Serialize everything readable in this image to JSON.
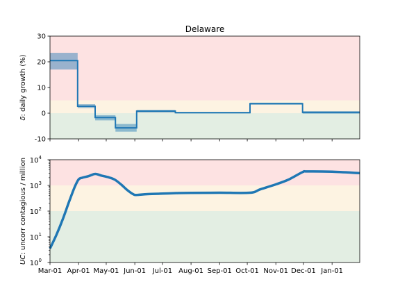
{
  "chart_data": [
    {
      "type": "line",
      "title": "Delaware",
      "ylabel_symbol": "δ",
      "ylabel_rest": ": daily growth (%)",
      "ylim": [
        -10,
        30
      ],
      "yticks": [
        -10,
        0,
        10,
        20,
        30
      ],
      "xlim": [
        "2020-03-01",
        "2021-01-31"
      ],
      "bands": [
        {
          "from": -10,
          "to": 0,
          "color": "#e3eee3"
        },
        {
          "from": 0,
          "to": 5,
          "color": "#fdf3e2"
        },
        {
          "from": 5,
          "to": 30,
          "color": "#fde2e2"
        }
      ],
      "series": [
        {
          "type": "step",
          "color": "#1f77b4",
          "segments": [
            {
              "start": "2020-03-01",
              "end": "2020-03-31",
              "value": 20.5,
              "lo": 17.0,
              "hi": 23.5
            },
            {
              "start": "2020-03-31",
              "end": "2020-04-19",
              "value": 2.7,
              "lo": 2.0,
              "hi": 3.5
            },
            {
              "start": "2020-04-19",
              "end": "2020-05-11",
              "value": -1.7,
              "lo": -2.8,
              "hi": -0.8
            },
            {
              "start": "2020-05-11",
              "end": "2020-06-03",
              "value": -5.7,
              "lo": -7.2,
              "hi": -4.2
            },
            {
              "start": "2020-06-03",
              "end": "2020-07-15",
              "value": 0.8,
              "lo": 0.2,
              "hi": 1.3
            },
            {
              "start": "2020-07-15",
              "end": "2020-10-04",
              "value": 0.2,
              "lo": -0.1,
              "hi": 0.5
            },
            {
              "start": "2020-10-04",
              "end": "2020-11-30",
              "value": 3.7,
              "lo": 3.3,
              "hi": 4.1
            },
            {
              "start": "2020-11-30",
              "end": "2021-01-31",
              "value": 0.3,
              "lo": -0.2,
              "hi": 0.8
            }
          ]
        }
      ]
    },
    {
      "type": "line",
      "ylabel_symbol": "UC",
      "ylabel_rest": ": uncorr contagious / million",
      "yscale": "log",
      "ylim": [
        1,
        10000
      ],
      "yticks": [
        {
          "value": 1,
          "base": "10",
          "exp": "0"
        },
        {
          "value": 10,
          "base": "10",
          "exp": "1"
        },
        {
          "value": 100,
          "base": "10",
          "exp": "2"
        },
        {
          "value": 1000,
          "base": "10",
          "exp": "3"
        },
        {
          "value": 10000,
          "base": "10",
          "exp": "4"
        }
      ],
      "xlim": [
        "2020-03-01",
        "2021-01-31"
      ],
      "xticks": [
        {
          "date": "2020-03-01",
          "label": "Mar-01"
        },
        {
          "date": "2020-04-01",
          "label": "Apr-01"
        },
        {
          "date": "2020-05-01",
          "label": "May-01"
        },
        {
          "date": "2020-06-01",
          "label": "Jun-01"
        },
        {
          "date": "2020-07-01",
          "label": "Jul-01"
        },
        {
          "date": "2020-08-01",
          "label": "Aug-01"
        },
        {
          "date": "2020-09-01",
          "label": "Sep-01"
        },
        {
          "date": "2020-10-01",
          "label": "Oct-01"
        },
        {
          "date": "2020-11-01",
          "label": "Nov-01"
        },
        {
          "date": "2020-12-01",
          "label": "Dec-01"
        },
        {
          "date": "2021-01-01",
          "label": "Jan-01"
        }
      ],
      "bands": [
        {
          "from": 1,
          "to": 100,
          "color": "#e3eee3"
        },
        {
          "from": 100,
          "to": 1000,
          "color": "#fdf3e2"
        },
        {
          "from": 1000,
          "to": 10000,
          "color": "#fde2e2"
        }
      ],
      "series": [
        {
          "color": "#1f77b4",
          "x": [
            "2020-03-01",
            "2020-03-08",
            "2020-03-15",
            "2020-03-22",
            "2020-03-28",
            "2020-04-01",
            "2020-04-05",
            "2020-04-12",
            "2020-04-19",
            "2020-04-26",
            "2020-05-03",
            "2020-05-10",
            "2020-05-17",
            "2020-05-24",
            "2020-05-31",
            "2020-06-04",
            "2020-06-15",
            "2020-07-01",
            "2020-07-15",
            "2020-08-01",
            "2020-09-01",
            "2020-10-04",
            "2020-10-15",
            "2020-11-01",
            "2020-11-15",
            "2020-11-30",
            "2020-12-05",
            "2021-01-01",
            "2021-01-31"
          ],
          "y": [
            3.5,
            12,
            50,
            250,
            900,
            1700,
            2000,
            2300,
            2800,
            2400,
            2100,
            1700,
            1100,
            650,
            440,
            430,
            460,
            480,
            500,
            510,
            520,
            520,
            700,
            1100,
            1700,
            3300,
            3500,
            3400,
            3000
          ]
        }
      ]
    }
  ]
}
